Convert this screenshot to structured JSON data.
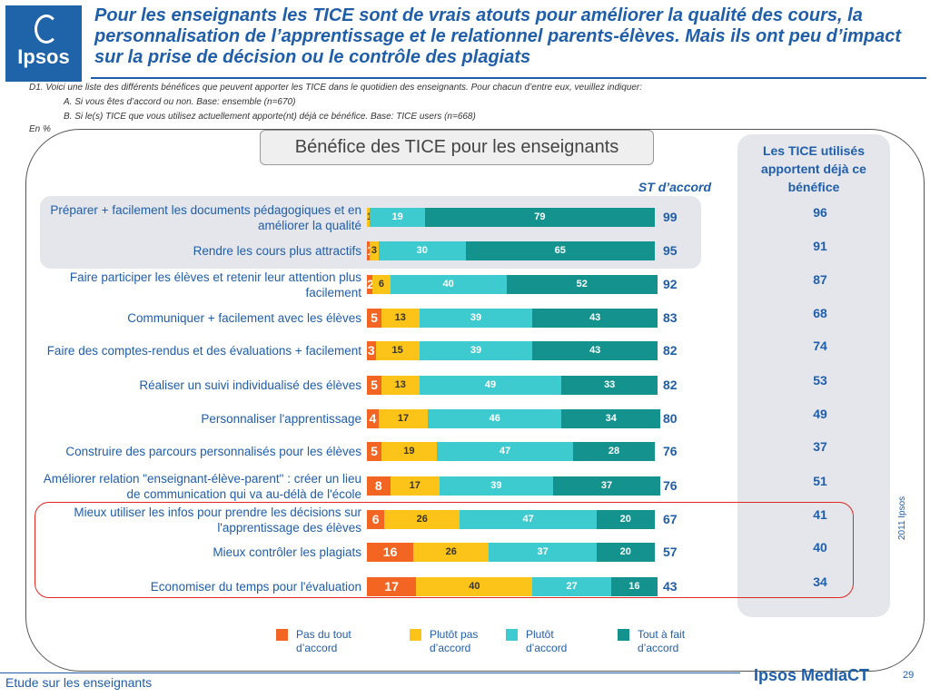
{
  "header": {
    "logo_text": "Ipsos",
    "title": "Pour les enseignants les TICE sont de vrais atouts pour améliorer la qualité des cours, la personnalisation de l’apprentissage et le relationnel parents-élèves. Mais ils ont peu d’impact sur la prise de décision ou le contrôle des plagiats"
  },
  "question": {
    "line1": "D1. Voici une liste des différents bénéfices que peuvent apporter les TICE dans le quotidien des enseignants. Pour chacun d’entre eux, veuillez indiquer:",
    "line2": "A. Si vous êtes d’accord ou non. Base: ensemble (n=670)",
    "line3": "B. Si le(s) TICE que vous utilisez actuellement apporte(nt) déjà ce bénéfice. Base: TICE users (n=668)",
    "unit": "En %"
  },
  "chart_data": {
    "type": "bar",
    "stacked": true,
    "orientation": "horizontal",
    "title": "Bénéfice des TICE pour les enseignants",
    "categories": [
      "Préparer + facilement les documents pédagogiques et en améliorer la qualité",
      "Rendre les cours plus attractifs",
      "Faire participer les élèves et retenir leur attention plus facilement",
      "Communiquer + facilement avec les élèves",
      "Faire des comptes-rendus et des évaluations + facilement",
      "Réaliser un suivi individualisé des élèves",
      "Personnaliser l'apprentissage",
      "Construire des parcours personnalisés pour les élèves",
      "Améliorer relation \"enseignant-élève-parent\" : créer un lieu de communication qui va au-délà de l'école",
      "Mieux utiliser les infos pour prendre les décisions sur l'apprentissage des élèves",
      "Mieux contrôler les plagiats",
      "Economiser du temps pour l'évaluation"
    ],
    "series": [
      {
        "name": "Pas du tout d’accord",
        "color": "#f26522",
        "values": [
          0,
          1,
          2,
          5,
          3,
          5,
          4,
          5,
          8,
          6,
          16,
          17
        ]
      },
      {
        "name": "Plutôt pas d’accord",
        "color": "#fcc418",
        "values": [
          1,
          3,
          6,
          13,
          15,
          13,
          17,
          19,
          17,
          26,
          26,
          40
        ]
      },
      {
        "name": "Plutôt d’accord",
        "color": "#3ecbd0",
        "values": [
          19,
          30,
          40,
          39,
          39,
          49,
          46,
          47,
          39,
          47,
          37,
          27
        ]
      },
      {
        "name": "Tout à fait d’accord",
        "color": "#14928e",
        "values": [
          79,
          65,
          52,
          43,
          43,
          33,
          34,
          28,
          37,
          20,
          20,
          16
        ]
      }
    ],
    "st_accord_label": "ST d’accord",
    "st_accord": [
      99,
      95,
      92,
      83,
      82,
      82,
      80,
      76,
      76,
      67,
      57,
      43
    ],
    "deja_label": "Les TICE utilisés apportent déjà ce bénéfice",
    "deja": [
      96,
      91,
      87,
      68,
      74,
      53,
      49,
      37,
      51,
      41,
      40,
      34
    ],
    "xlim": [
      0,
      100
    ],
    "legend": "bottom"
  },
  "footer": {
    "left": "Etude sur les enseignants",
    "brand": "Ipsos MediaCT",
    "page": "29",
    "copyright": "2011 Ipsos"
  }
}
